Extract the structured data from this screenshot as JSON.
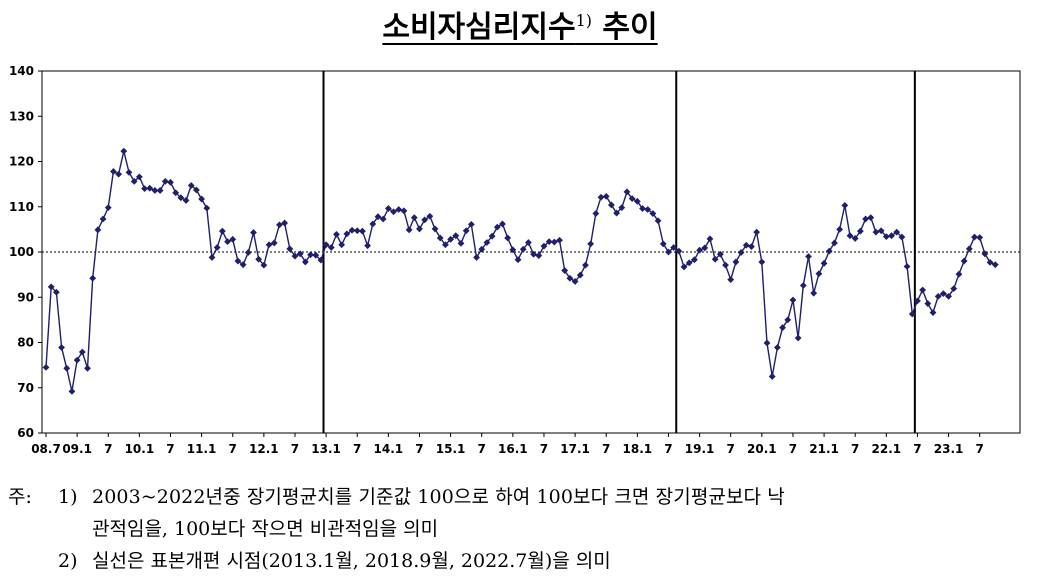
{
  "title": {
    "main": "소비자심리지수",
    "sup": "1)",
    "suffix": " 추이"
  },
  "notes": {
    "prefix": "주:",
    "n1_num": "1)",
    "n1_line1": "2003~2022년중 장기평균치를 기준값 100으로 하여 100보다 크면 장기평균보다 낙",
    "n1_line2": "관적임을, 100보다 작으면 비관적임을 의미",
    "n2_num": "2)",
    "n2_line1": "실선은 표본개편 시점(2013.1월, 2018.9월, 2022.7월)을 의미"
  },
  "chart_data": {
    "type": "line",
    "start": "2008.7",
    "ylim": [
      60,
      140
    ],
    "yticks": [
      60,
      70,
      80,
      90,
      100,
      110,
      120,
      130,
      140
    ],
    "reference_line": 100,
    "vertical_lines": [
      "2013.1",
      "2018.9",
      "2022.7"
    ],
    "series_color": "#1f1f6b",
    "xtick_labels": [
      {
        "month": "2008.7",
        "label": "08.7"
      },
      {
        "month": "2009.1",
        "label": "09.1"
      },
      {
        "month": "2009.7",
        "label": "7"
      },
      {
        "month": "2010.1",
        "label": "10.1"
      },
      {
        "month": "2010.7",
        "label": "7"
      },
      {
        "month": "2011.1",
        "label": "11.1"
      },
      {
        "month": "2011.7",
        "label": "7"
      },
      {
        "month": "2012.1",
        "label": "12.1"
      },
      {
        "month": "2012.7",
        "label": "7"
      },
      {
        "month": "2013.1",
        "label": "13.1"
      },
      {
        "month": "2013.7",
        "label": "7"
      },
      {
        "month": "2014.1",
        "label": "14.1"
      },
      {
        "month": "2014.7",
        "label": "7"
      },
      {
        "month": "2015.1",
        "label": "15.1"
      },
      {
        "month": "2015.7",
        "label": "7"
      },
      {
        "month": "2016.1",
        "label": "16.1"
      },
      {
        "month": "2016.7",
        "label": "7"
      },
      {
        "month": "2017.1",
        "label": "17.1"
      },
      {
        "month": "2017.7",
        "label": "7"
      },
      {
        "month": "2018.1",
        "label": "18.1"
      },
      {
        "month": "2018.7",
        "label": "7"
      },
      {
        "month": "2019.1",
        "label": "19.1"
      },
      {
        "month": "2019.7",
        "label": "7"
      },
      {
        "month": "2020.1",
        "label": "20.1"
      },
      {
        "month": "2020.7",
        "label": "7"
      },
      {
        "month": "2021.1",
        "label": "21.1"
      },
      {
        "month": "2021.7",
        "label": "7"
      },
      {
        "month": "2022.1",
        "label": "22.1"
      },
      {
        "month": "2022.7",
        "label": "7"
      },
      {
        "month": "2023.1",
        "label": "23.1"
      },
      {
        "month": "2023.7",
        "label": "7"
      }
    ],
    "values": [
      74.5,
      92.3,
      91.1,
      78.9,
      74.3,
      69.2,
      76.1,
      77.9,
      74.3,
      94.2,
      104.9,
      107.3,
      109.8,
      117.8,
      117.2,
      122.3,
      117.6,
      115.6,
      116.6,
      114.0,
      114.1,
      113.6,
      113.6,
      115.6,
      115.4,
      113.1,
      112.0,
      111.4,
      114.7,
      113.7,
      111.7,
      109.7,
      98.8,
      101.0,
      104.6,
      102.3,
      102.8,
      98.0,
      97.2,
      99.9,
      104.3,
      98.4,
      97.1,
      101.6,
      102.0,
      106.0,
      106.4,
      100.7,
      99.1,
      99.6,
      97.8,
      99.4,
      99.3,
      98.2,
      101.6,
      101.0,
      103.9,
      101.6,
      104.0,
      104.8,
      104.7,
      104.6,
      101.4,
      106.2,
      107.8,
      107.3,
      109.6,
      108.9,
      109.4,
      109.1,
      104.9,
      107.6,
      105.1,
      107.1,
      107.9,
      105.1,
      103.1,
      101.6,
      102.8,
      103.6,
      101.9,
      104.7,
      106.1,
      98.8,
      100.6,
      102.1,
      103.5,
      105.5,
      106.2,
      103.1,
      100.5,
      98.3,
      100.6,
      102.1,
      99.5,
      99.2,
      101.3,
      102.3,
      102.2,
      102.6,
      95.9,
      94.2,
      93.5,
      94.9,
      97.1,
      101.8,
      108.5,
      112.1,
      112.3,
      110.4,
      108.6,
      109.8,
      113.3,
      111.8,
      111.2,
      109.6,
      109.4,
      108.5,
      106.9,
      101.8,
      100.0,
      101.0,
      100.2,
      96.7,
      97.6,
      98.3,
      100.4,
      100.9,
      102.9,
      98.4,
      99.5,
      97.1,
      93.9,
      97.8,
      99.9,
      101.5,
      101.2,
      104.4,
      97.8,
      79.9,
      72.5,
      78.9,
      83.3,
      85.0,
      89.4,
      81.0,
      92.6,
      99.0,
      90.9,
      95.2,
      97.5,
      100.2,
      102.0,
      105.0,
      110.3,
      103.6,
      103.0,
      104.6,
      107.3,
      107.6,
      104.4,
      104.7,
      103.4,
      103.6,
      104.4,
      103.3,
      96.8,
      86.3,
      89.2,
      91.6,
      88.6,
      86.6,
      90.2,
      90.8,
      90.2,
      91.9,
      95.1,
      98.0,
      100.7,
      103.3,
      103.2,
      99.6,
      97.7,
      97.2
    ]
  }
}
